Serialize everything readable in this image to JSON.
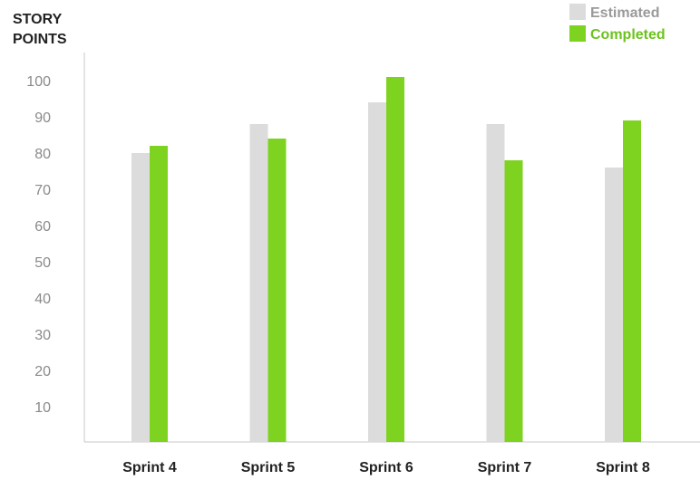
{
  "chart_data": {
    "type": "bar",
    "ylabel_lines": [
      "STORY",
      "POINTS"
    ],
    "xlabel": "",
    "categories": [
      "Sprint 4",
      "Sprint 5",
      "Sprint 6",
      "Sprint 7",
      "Sprint 8"
    ],
    "series": [
      {
        "name": "Estimated",
        "values": [
          80,
          88,
          94,
          88,
          76
        ],
        "color": "#dcdcdc"
      },
      {
        "name": "Completed",
        "values": [
          82,
          84,
          101,
          78,
          89
        ],
        "color": "#7ed321"
      }
    ],
    "yticks": [
      10,
      20,
      30,
      40,
      50,
      60,
      70,
      80,
      90,
      100
    ],
    "ylim": [
      0,
      105
    ],
    "legend_position": "top-right",
    "grid": false,
    "colors": {
      "axis": "#c8c8c8",
      "tick_text": "#8a8a8a",
      "category_text": "#222222",
      "title_text": "#222222",
      "legend_estimated_text": "#9a9a9a",
      "legend_completed_text": "#6cc21d"
    }
  }
}
